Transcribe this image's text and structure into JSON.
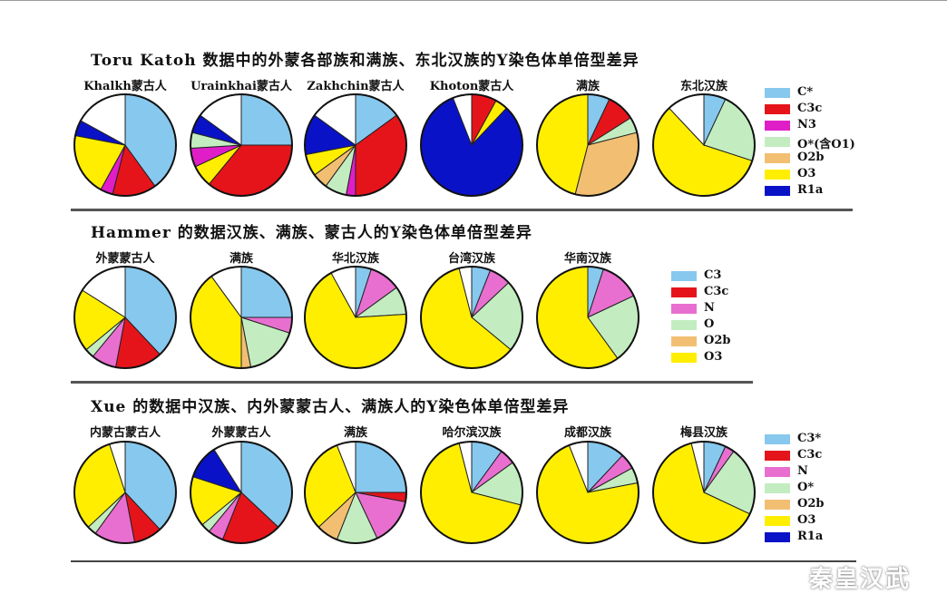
{
  "watermark": "秦皇汉武",
  "colors": {
    "C": "#87c8ee",
    "C3c": "#e5141b",
    "N": "#e86fd0",
    "N3": "#e01ec8",
    "O": "#c3edc0",
    "O2b": "#f2bf72",
    "O3": "#ffee00",
    "R1a": "#0a12c8",
    "other": "#ffffff"
  },
  "chart_data": [
    {
      "type": "pie",
      "title": "Toru Katoh 数据中的外蒙各部族和满族、东北汉族的Y染色体单倍型差异",
      "legend": [
        "C*",
        "C3c",
        "N3",
        "O*(含O1)",
        "O2b",
        "O3",
        "R1a"
      ],
      "legend_keys": [
        "C",
        "C3c",
        "N3",
        "O",
        "O2b",
        "O3",
        "R1a"
      ],
      "pies": [
        {
          "label": "Khalkh蒙古人",
          "slices": [
            {
              "k": "C",
              "v": 40
            },
            {
              "k": "C3c",
              "v": 14
            },
            {
              "k": "N3",
              "v": 4
            },
            {
              "k": "O3",
              "v": 20
            },
            {
              "k": "R1a",
              "v": 5
            },
            {
              "k": "other",
              "v": 17
            }
          ]
        },
        {
          "label": "Urainkhai蒙古人",
          "slices": [
            {
              "k": "C",
              "v": 25
            },
            {
              "k": "C3c",
              "v": 36
            },
            {
              "k": "O3",
              "v": 7
            },
            {
              "k": "N3",
              "v": 6
            },
            {
              "k": "O",
              "v": 5
            },
            {
              "k": "R1a",
              "v": 6
            },
            {
              "k": "other",
              "v": 15
            }
          ]
        },
        {
          "label": "Zakhchin蒙古人",
          "slices": [
            {
              "k": "C",
              "v": 15
            },
            {
              "k": "C3c",
              "v": 35
            },
            {
              "k": "N3",
              "v": 3
            },
            {
              "k": "O",
              "v": 7
            },
            {
              "k": "O2b",
              "v": 5
            },
            {
              "k": "O3",
              "v": 7
            },
            {
              "k": "R1a",
              "v": 13
            },
            {
              "k": "other",
              "v": 15
            }
          ]
        },
        {
          "label": "Khoton蒙古人",
          "slices": [
            {
              "k": "C3c",
              "v": 8
            },
            {
              "k": "O3",
              "v": 4
            },
            {
              "k": "R1a",
              "v": 82
            },
            {
              "k": "other",
              "v": 6
            }
          ]
        },
        {
          "label": "满族",
          "slices": [
            {
              "k": "C",
              "v": 7
            },
            {
              "k": "C3c",
              "v": 9
            },
            {
              "k": "O",
              "v": 5
            },
            {
              "k": "O2b",
              "v": 33
            },
            {
              "k": "O3",
              "v": 46
            }
          ]
        },
        {
          "label": "东北汉族",
          "slices": [
            {
              "k": "C",
              "v": 7
            },
            {
              "k": "O",
              "v": 23
            },
            {
              "k": "O3",
              "v": 58
            },
            {
              "k": "other",
              "v": 12
            }
          ]
        }
      ]
    },
    {
      "type": "pie",
      "title": "Hammer 的数据汉族、满族、蒙古人的Y染色体单倍型差异",
      "legend": [
        "C3",
        "C3c",
        "N",
        "O",
        "O2b",
        "O3"
      ],
      "legend_keys": [
        "C",
        "C3c",
        "N",
        "O",
        "O2b",
        "O3"
      ],
      "pies": [
        {
          "label": "外蒙蒙古人",
          "slices": [
            {
              "k": "C",
              "v": 38
            },
            {
              "k": "C3c",
              "v": 15
            },
            {
              "k": "N",
              "v": 8
            },
            {
              "k": "O",
              "v": 3
            },
            {
              "k": "O3",
              "v": 20
            },
            {
              "k": "other",
              "v": 16
            }
          ]
        },
        {
          "label": "满族",
          "slices": [
            {
              "k": "C",
              "v": 25
            },
            {
              "k": "N",
              "v": 5
            },
            {
              "k": "O",
              "v": 17
            },
            {
              "k": "O2b",
              "v": 3
            },
            {
              "k": "O3",
              "v": 40
            },
            {
              "k": "other",
              "v": 10
            }
          ]
        },
        {
          "label": "华北汉族",
          "slices": [
            {
              "k": "C",
              "v": 5
            },
            {
              "k": "N",
              "v": 10
            },
            {
              "k": "O",
              "v": 9
            },
            {
              "k": "O3",
              "v": 68
            },
            {
              "k": "other",
              "v": 8
            }
          ]
        },
        {
          "label": "台湾汉族",
          "slices": [
            {
              "k": "C",
              "v": 6
            },
            {
              "k": "N",
              "v": 7
            },
            {
              "k": "O",
              "v": 23
            },
            {
              "k": "O3",
              "v": 60
            },
            {
              "k": "other",
              "v": 4
            }
          ]
        },
        {
          "label": "华南汉族",
          "slices": [
            {
              "k": "C",
              "v": 5
            },
            {
              "k": "N",
              "v": 13
            },
            {
              "k": "O",
              "v": 22
            },
            {
              "k": "O3",
              "v": 60
            }
          ]
        }
      ]
    },
    {
      "type": "pie",
      "title": "Xue 的数据中汉族、内外蒙蒙古人、满族人的Y染色体单倍型差异",
      "legend": [
        "C3*",
        "C3c",
        "N",
        "O*",
        "O2b",
        "O3",
        "R1a"
      ],
      "legend_keys": [
        "C",
        "C3c",
        "N",
        "O",
        "O2b",
        "O3",
        "R1a"
      ],
      "pies": [
        {
          "label": "内蒙古蒙古人",
          "slices": [
            {
              "k": "C",
              "v": 38
            },
            {
              "k": "C3c",
              "v": 9
            },
            {
              "k": "N",
              "v": 13
            },
            {
              "k": "O",
              "v": 3
            },
            {
              "k": "O3",
              "v": 32
            },
            {
              "k": "other",
              "v": 5
            }
          ]
        },
        {
          "label": "外蒙蒙古人",
          "slices": [
            {
              "k": "C",
              "v": 37
            },
            {
              "k": "C3c",
              "v": 19
            },
            {
              "k": "N",
              "v": 5
            },
            {
              "k": "O",
              "v": 3
            },
            {
              "k": "O3",
              "v": 16
            },
            {
              "k": "R1a",
              "v": 11
            },
            {
              "k": "other",
              "v": 9
            }
          ]
        },
        {
          "label": "满族",
          "slices": [
            {
              "k": "C",
              "v": 25
            },
            {
              "k": "C3c",
              "v": 3
            },
            {
              "k": "N",
              "v": 15
            },
            {
              "k": "O",
              "v": 13
            },
            {
              "k": "O2b",
              "v": 7
            },
            {
              "k": "O3",
              "v": 31
            },
            {
              "k": "other",
              "v": 6
            }
          ]
        },
        {
          "label": "哈尔滨汉族",
          "slices": [
            {
              "k": "C",
              "v": 10
            },
            {
              "k": "N",
              "v": 5
            },
            {
              "k": "O",
              "v": 14
            },
            {
              "k": "O3",
              "v": 67
            },
            {
              "k": "other",
              "v": 4
            }
          ]
        },
        {
          "label": "成都汉族",
          "slices": [
            {
              "k": "C",
              "v": 12
            },
            {
              "k": "N",
              "v": 5
            },
            {
              "k": "O",
              "v": 5
            },
            {
              "k": "O3",
              "v": 72
            },
            {
              "k": "other",
              "v": 6
            }
          ]
        },
        {
          "label": "梅县汉族",
          "slices": [
            {
              "k": "C",
              "v": 7
            },
            {
              "k": "N",
              "v": 3
            },
            {
              "k": "O",
              "v": 22
            },
            {
              "k": "O3",
              "v": 64
            },
            {
              "k": "other",
              "v": 4
            }
          ]
        }
      ]
    }
  ]
}
